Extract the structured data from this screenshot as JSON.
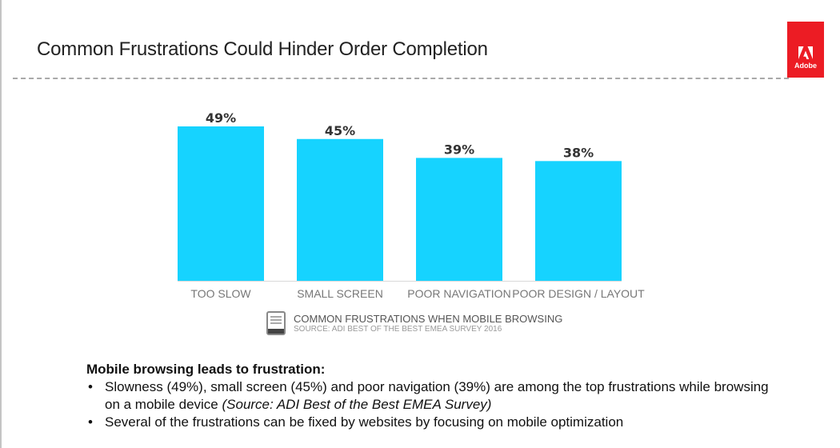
{
  "slide": {
    "title": "Common Frustrations Could Hinder Order Completion",
    "logo_text": "Adobe",
    "logo_color": "#ec1c24"
  },
  "chart_data": {
    "type": "bar",
    "title": "COMMON FRUSTRATIONS WHEN MOBILE BROWSING",
    "source": "SOURCE: ADI BEST OF THE BEST EMEA SURVEY 2016",
    "categories": [
      "TOO SLOW",
      "SMALL SCREEN",
      "POOR NAVIGATION",
      "POOR DESIGN / LAYOUT"
    ],
    "values": [
      49,
      45,
      39,
      38
    ],
    "data_labels": [
      "49%",
      "45%",
      "39%",
      "38%"
    ],
    "unit": "%",
    "xlabel": "",
    "ylabel": "",
    "ylim": [
      0,
      49
    ],
    "grid": false,
    "legend": "none",
    "bar_color": "#16d3ff"
  },
  "caption": {
    "icon": "adobe-digital-insights-icon",
    "title": "COMMON FRUSTRATIONS WHEN MOBILE BROWSING",
    "source": "SOURCE: ADI BEST OF THE BEST EMEA SURVEY 2016"
  },
  "notes": {
    "heading": "Mobile browsing leads to frustration:",
    "bullets": [
      {
        "text": "Slowness (49%), small screen (45%) and poor navigation (39%) are among the top frustrations while browsing on a mobile device ",
        "source": "(Source: ADI Best of the Best EMEA Survey)"
      },
      {
        "text": "Several of the frustrations can be fixed by websites by focusing on mobile optimization",
        "source": ""
      }
    ]
  }
}
